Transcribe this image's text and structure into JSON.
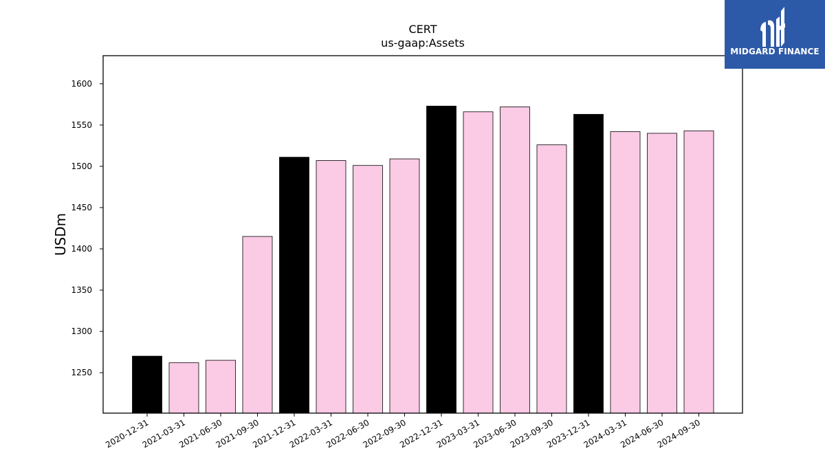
{
  "chart_data": {
    "type": "bar",
    "title": "CERT",
    "subtitle": "us-gaap:Assets",
    "xlabel": "",
    "ylabel": "USDm",
    "ylim": [
      1201,
      1634
    ],
    "yticks": [
      1250,
      1300,
      1350,
      1400,
      1450,
      1500,
      1550,
      1600
    ],
    "grid": false,
    "categories": [
      "2020-12-31",
      "2021-03-31",
      "2021-06-30",
      "2021-09-30",
      "2021-12-31",
      "2022-03-31",
      "2022-06-30",
      "2022-09-30",
      "2022-12-31",
      "2023-03-31",
      "2023-06-30",
      "2023-09-30",
      "2023-12-31",
      "2024-03-31",
      "2024-06-30",
      "2024-09-30"
    ],
    "values": [
      1270,
      1262,
      1265,
      1415,
      1511,
      1507,
      1501,
      1509,
      1573,
      1566,
      1572,
      1526,
      1563,
      1542,
      1540,
      1543
    ],
    "bar_colors": [
      "#000000",
      "#fbcae5",
      "#fbcae5",
      "#fbcae5",
      "#000000",
      "#fbcae5",
      "#fbcae5",
      "#fbcae5",
      "#000000",
      "#fbcae5",
      "#fbcae5",
      "#fbcae5",
      "#000000",
      "#fbcae5",
      "#fbcae5",
      "#fbcae5"
    ]
  },
  "logo": {
    "text": "MIDGARD FINANCE",
    "background": "#2d5aa8",
    "icon": "midgard-logo-icon"
  }
}
